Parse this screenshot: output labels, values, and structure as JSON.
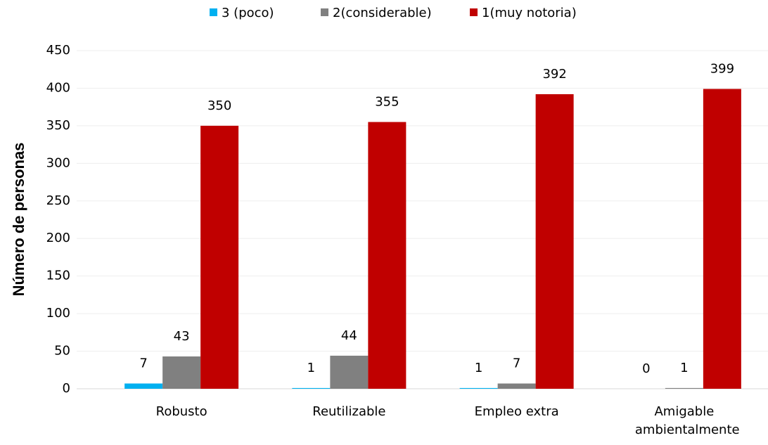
{
  "chart_data": {
    "type": "bar",
    "categories": [
      "Robusto",
      "Reutilizable",
      "Empleo extra",
      "Amigable ambientalmente"
    ],
    "series": [
      {
        "name": "3 (poco)",
        "color": "#00b0f0",
        "values": [
          7,
          1,
          1,
          0
        ]
      },
      {
        "name": "2(considerable)",
        "color": "#808080",
        "values": [
          43,
          44,
          7,
          1
        ]
      },
      {
        "name": "1(muy notoria)",
        "color": "#c00000",
        "values": [
          350,
          355,
          392,
          399
        ]
      }
    ],
    "y_label": "Número de personas",
    "ylim": [
      0,
      450
    ],
    "yticks": [
      0,
      50,
      100,
      150,
      200,
      250,
      300,
      350,
      400,
      450
    ],
    "grid": true,
    "legend": "top"
  }
}
